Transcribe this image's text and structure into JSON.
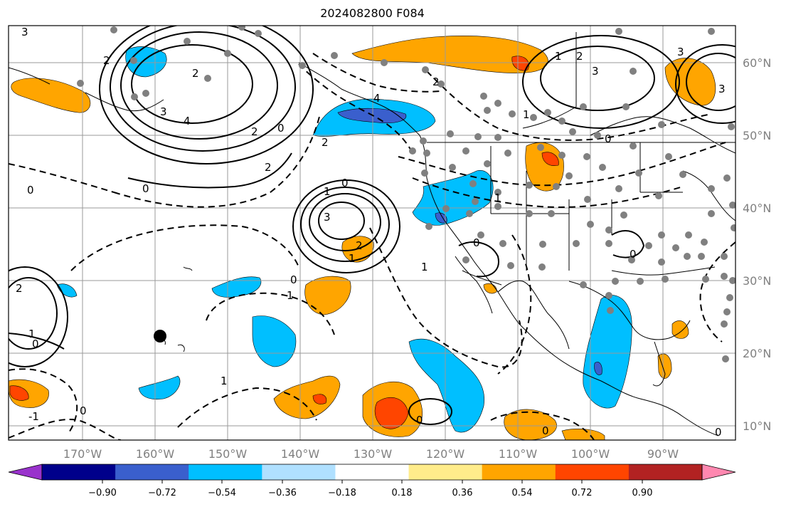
{
  "title": "2024082800 F084",
  "map": {
    "longitude_labels": [
      "170°W",
      "160°W",
      "150°W",
      "140°W",
      "130°W",
      "120°W",
      "110°W",
      "100°W",
      "90°W"
    ],
    "latitude_labels": [
      "60°N",
      "50°N",
      "40°N",
      "30°N",
      "20°N",
      "10°N"
    ],
    "gridline_color": "#808080",
    "contour_labels": [
      "3",
      "2",
      "3",
      "4",
      "2",
      "0",
      "2",
      "0",
      "0",
      "2",
      "3",
      "2",
      "1",
      "0",
      "1",
      "1",
      "0",
      "0",
      "1",
      "2",
      "1",
      "0",
      "4",
      "3",
      "2",
      "3",
      "0",
      "3",
      "2",
      "1",
      "1",
      "0",
      "0",
      "1",
      "0",
      "-1",
      "0",
      "1",
      "0",
      "2"
    ],
    "hawaii_marker": "black dot"
  },
  "colorbar": {
    "tick_labels": [
      "−0.90",
      "−0.72",
      "−0.54",
      "−0.36",
      "−0.18",
      "0.18",
      "0.36",
      "0.54",
      "0.72",
      "0.90"
    ],
    "colors": [
      "#9932CC",
      "#00008B",
      "#3A5FCD",
      "#00BFFF",
      "#B0E0FF",
      "#FFFFFF",
      "#FFEC8B",
      "#FFA500",
      "#FF4500",
      "#B22222",
      "#FF88B0"
    ]
  }
}
